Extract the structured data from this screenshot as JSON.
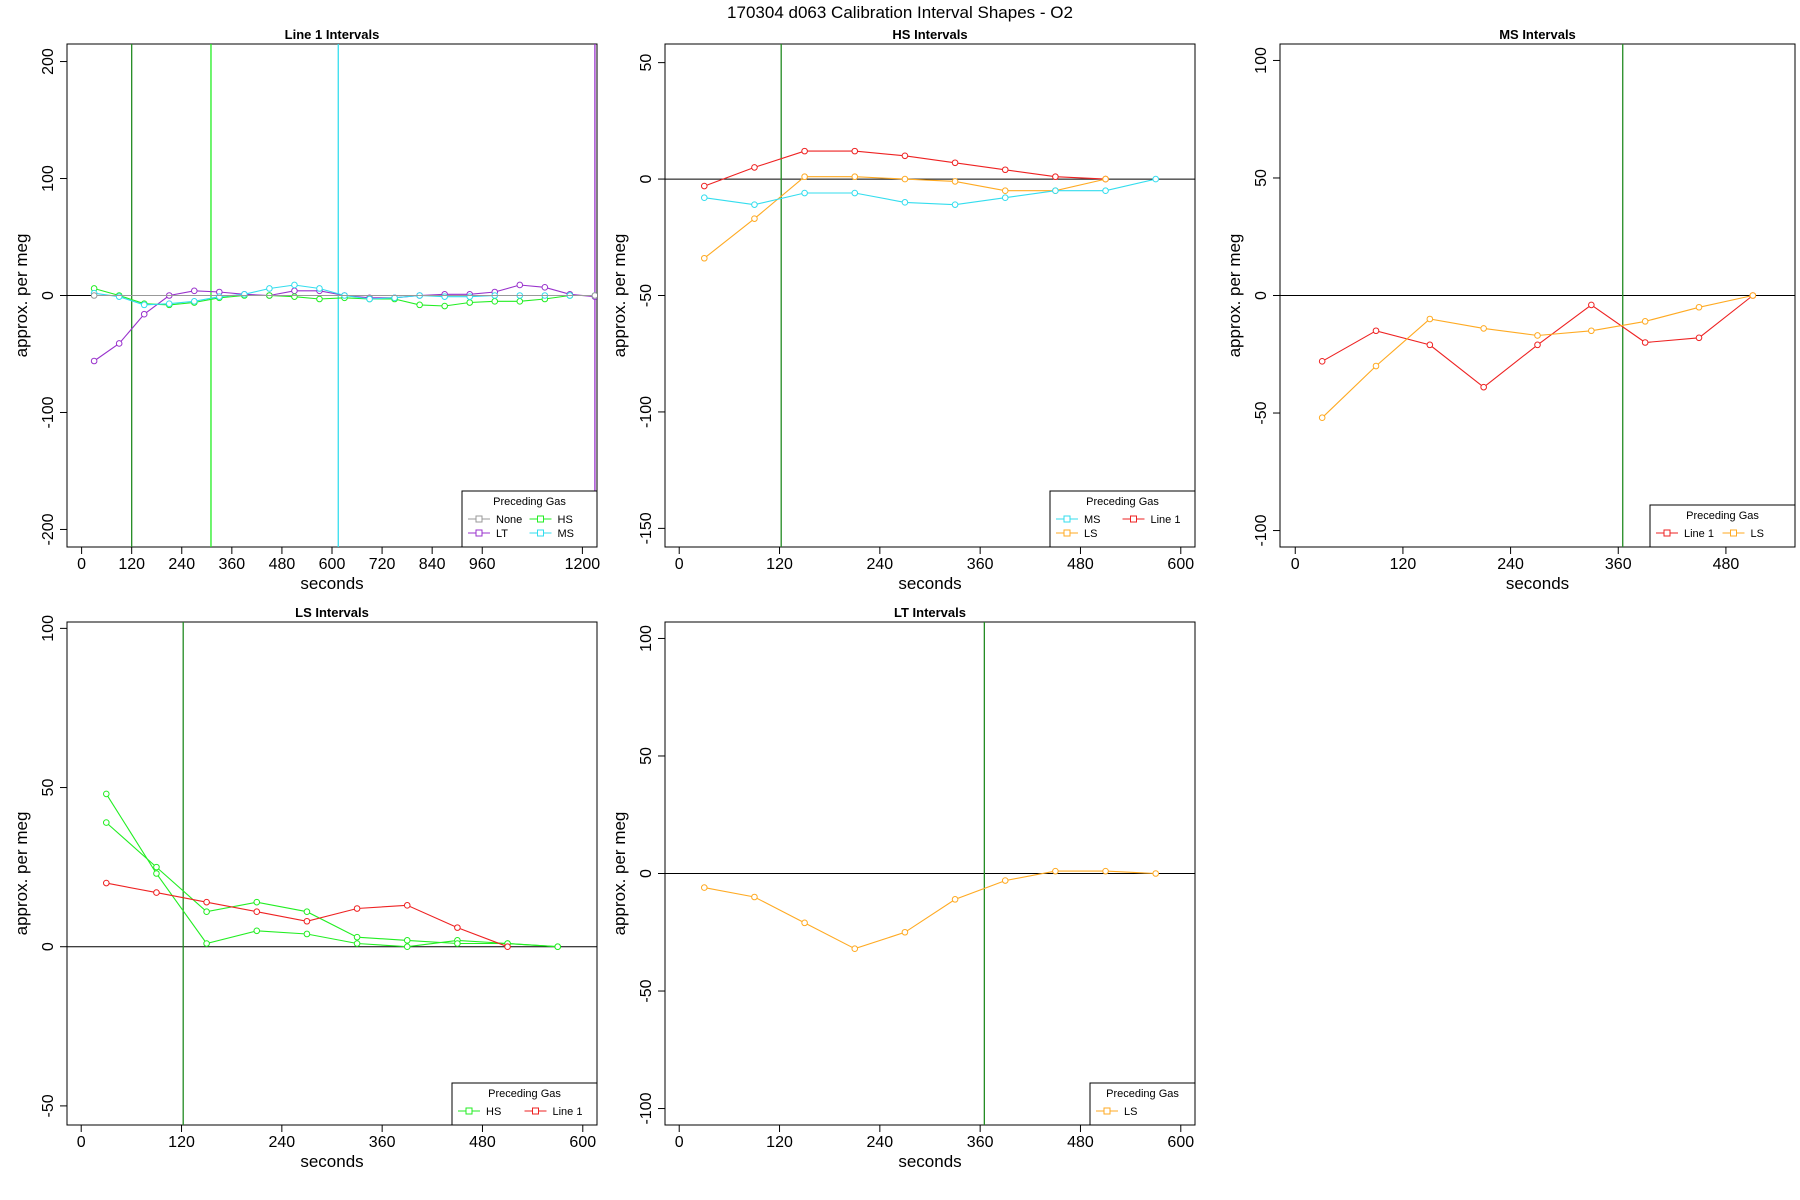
{
  "figure_title": "170304   d063   Calibration Interval Shapes - O2",
  "common": {
    "xlabel": "seconds",
    "ylabel": "approx. per meg",
    "legend_title": "Preceding Gas"
  },
  "colors": {
    "None": "#999999",
    "LT": "#9932CC",
    "HS": "#22EE22",
    "MS": "#33DDEE",
    "LS": "#FFAA22",
    "Line 1": "#EE2222",
    "vline_dark": "#228B22",
    "axis": "#000000"
  },
  "chart_data": [
    {
      "id": "line1",
      "type": "line",
      "title": "Line 1 Intervals",
      "xlabel": "seconds",
      "ylabel": "approx. per meg",
      "xlim": [
        -35,
        1235
      ],
      "ylim": [
        -215,
        215
      ],
      "xticks": [
        0,
        120,
        240,
        360,
        480,
        600,
        720,
        840,
        960,
        1200
      ],
      "yticks": [
        -200,
        -100,
        0,
        100,
        200
      ],
      "hline": 0,
      "vlines": [
        {
          "x": 120,
          "color": "#228B22"
        },
        {
          "x": 310,
          "color": "#22EE22"
        },
        {
          "x": 615,
          "color": "#33DDEE"
        },
        {
          "x": 1230,
          "color": "#9932CC"
        }
      ],
      "legend": {
        "placement": "bottom-right",
        "entries": [
          "None",
          "HS",
          "LT",
          "MS"
        ],
        "columns": 2
      },
      "series": [
        {
          "name": "LT",
          "x": [
            30,
            90,
            150,
            210,
            270,
            330,
            390,
            450,
            510,
            570,
            630,
            690,
            750,
            810,
            870,
            930,
            990,
            1050,
            1110,
            1170,
            1230
          ],
          "values": [
            -56,
            -41,
            -16,
            0,
            4,
            3,
            1,
            0,
            4,
            4,
            0,
            -2,
            -2,
            0,
            1,
            1,
            3,
            9,
            7,
            1,
            -1
          ]
        },
        {
          "name": "HS",
          "x": [
            30,
            90,
            150,
            210,
            270,
            330,
            390,
            450,
            510,
            570,
            630,
            690,
            750,
            810,
            870,
            930,
            990,
            1050,
            1110,
            1170
          ],
          "values": [
            6,
            0,
            -7,
            -8,
            -6,
            -2,
            0,
            0,
            -1,
            -3,
            -2,
            -3,
            -3,
            -8,
            -9,
            -6,
            -5,
            -5,
            -3,
            0
          ]
        },
        {
          "name": "MS",
          "x": [
            30,
            90,
            150,
            210,
            270,
            330,
            390,
            450,
            510,
            570,
            630,
            690,
            750,
            810,
            870,
            930,
            990,
            1050,
            1110,
            1170,
            1230
          ],
          "values": [
            2,
            -1,
            -8,
            -7,
            -5,
            -1,
            1,
            6,
            9,
            6,
            0,
            -3,
            -2,
            0,
            -1,
            -1,
            0,
            0,
            0,
            0,
            0
          ]
        },
        {
          "name": "None",
          "x": [
            30,
            1230
          ],
          "values": [
            0,
            0
          ]
        }
      ]
    },
    {
      "id": "hs",
      "type": "line",
      "title": "HS Intervals",
      "xlabel": "seconds",
      "ylabel": "approx. per meg",
      "xlim": [
        -17,
        617
      ],
      "ylim": [
        -158,
        58
      ],
      "xticks": [
        0,
        120,
        240,
        360,
        480,
        600
      ],
      "yticks": [
        -150,
        -100,
        -50,
        0,
        50
      ],
      "hline": 0,
      "vlines": [
        {
          "x": 122,
          "color": "#228B22"
        }
      ],
      "legend": {
        "placement": "bottom-right",
        "entries": [
          "MS",
          "Line 1",
          "LS"
        ],
        "columns": 2
      },
      "series": [
        {
          "name": "Line 1",
          "x": [
            30,
            90,
            150,
            210,
            270,
            330,
            390,
            450,
            510
          ],
          "values": [
            -3,
            5,
            12,
            12,
            10,
            7,
            4,
            1,
            0
          ]
        },
        {
          "name": "LS",
          "x": [
            30,
            90,
            150,
            210,
            270,
            330,
            390,
            450,
            510
          ],
          "values": [
            -34,
            -17,
            1,
            1,
            0,
            -1,
            -5,
            -5,
            0
          ]
        },
        {
          "name": "MS",
          "x": [
            30,
            90,
            150,
            210,
            270,
            330,
            390,
            450,
            510,
            570
          ],
          "values": [
            -8,
            -11,
            -6,
            -6,
            -10,
            -11,
            -8,
            -5,
            -5,
            0
          ]
        }
      ]
    },
    {
      "id": "ms",
      "type": "line",
      "title": "MS Intervals",
      "xlabel": "seconds",
      "ylabel": "approx. per meg",
      "xlim": [
        -17,
        557
      ],
      "ylim": [
        -107,
        107
      ],
      "xticks": [
        0,
        120,
        240,
        360,
        480
      ],
      "yticks": [
        -100,
        -50,
        0,
        50,
        100
      ],
      "hline": 0,
      "vlines": [
        {
          "x": 365,
          "color": "#228B22"
        }
      ],
      "legend": {
        "placement": "bottom-right",
        "entries": [
          "Line 1",
          "LS"
        ],
        "columns": 2
      },
      "series": [
        {
          "name": "Line 1",
          "x": [
            30,
            90,
            150,
            210,
            270,
            330,
            390,
            450,
            510
          ],
          "values": [
            -28,
            -15,
            -21,
            -39,
            -21,
            -4,
            -20,
            -18,
            0
          ]
        },
        {
          "name": "LS",
          "x": [
            30,
            90,
            150,
            210,
            270,
            330,
            390,
            450,
            510
          ],
          "values": [
            -52,
            -30,
            -10,
            -14,
            -17,
            -15,
            -11,
            -5,
            0
          ]
        }
      ]
    },
    {
      "id": "ls",
      "type": "line",
      "title": "LS Intervals",
      "xlabel": "seconds",
      "ylabel": "approx. per meg",
      "xlim": [
        -17,
        617
      ],
      "ylim": [
        -56,
        102
      ],
      "xticks": [
        0,
        120,
        240,
        360,
        480,
        600
      ],
      "yticks": [
        -50,
        0,
        50,
        100
      ],
      "hline": 0,
      "vlines": [
        {
          "x": 122,
          "color": "#228B22"
        }
      ],
      "legend": {
        "placement": "bottom-right",
        "entries": [
          "HS",
          "Line 1"
        ],
        "columns": 2
      },
      "series": [
        {
          "name": "HS",
          "x": [
            30,
            90,
            150,
            210,
            270,
            330,
            390,
            450,
            510,
            570
          ],
          "values": [
            48,
            23,
            1,
            5,
            4,
            1,
            0,
            2,
            1,
            0
          ]
        },
        {
          "name": "HS",
          "x": [
            30,
            90,
            150,
            210,
            270,
            330,
            390,
            450,
            510,
            570
          ],
          "values": [
            39,
            25,
            11,
            14,
            11,
            3,
            2,
            1,
            1,
            0
          ]
        },
        {
          "name": "Line 1",
          "x": [
            30,
            90,
            150,
            210,
            270,
            330,
            390,
            450,
            510
          ],
          "values": [
            20,
            17,
            14,
            11,
            8,
            12,
            13,
            6,
            0
          ]
        }
      ]
    },
    {
      "id": "lt",
      "type": "line",
      "title": "LT Intervals",
      "xlabel": "seconds",
      "ylabel": "approx. per meg",
      "xlim": [
        -17,
        617
      ],
      "ylim": [
        -107,
        107
      ],
      "xticks": [
        0,
        120,
        240,
        360,
        480,
        600
      ],
      "yticks": [
        -100,
        -50,
        0,
        50,
        100
      ],
      "hline": 0,
      "vlines": [
        {
          "x": 365,
          "color": "#228B22"
        }
      ],
      "legend": {
        "placement": "bottom-right",
        "entries": [
          "LS"
        ],
        "columns": 1
      },
      "series": [
        {
          "name": "LS",
          "x": [
            30,
            90,
            150,
            210,
            270,
            330,
            390,
            450,
            510,
            570
          ],
          "values": [
            -6,
            -10,
            -21,
            -32,
            -25,
            -11,
            -3,
            1,
            1,
            0
          ]
        }
      ]
    }
  ]
}
